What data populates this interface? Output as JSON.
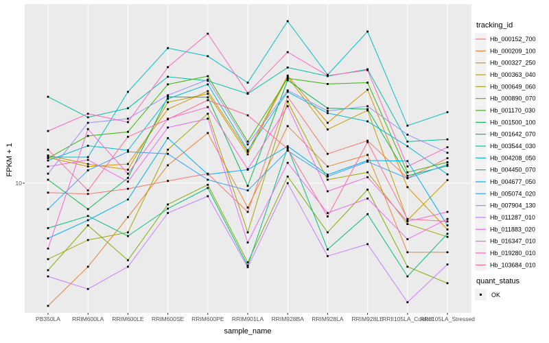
{
  "figure": {
    "background": "#FFFFFF",
    "panel_background": "#EBEBEB",
    "grid_color": "#FFFFFF",
    "point_color": "#000000",
    "axis_text_color": "#4D4D4D",
    "legend_key_background": "#F2F2F2"
  },
  "axes": {
    "x_title": "sample_name",
    "y_title": "FPKM + 1",
    "y_tick_label": "10"
  },
  "legend": {
    "color_title": "tracking_id",
    "shape_title": "quant_status",
    "shape_items": [
      {
        "label": "OK"
      }
    ]
  },
  "chart_data": {
    "type": "line",
    "title": "",
    "xlabel": "sample_name",
    "ylabel": "FPKM + 1",
    "y_scale": "log10",
    "y_ticks": [
      10
    ],
    "ylim": [
      1.9,
      100
    ],
    "grid": "major-on",
    "legend_position": "right",
    "legend_title": "tracking_id",
    "quant_status": {
      "title": "quant_status",
      "items": [
        "OK"
      ]
    },
    "x": [
      "PB350LA",
      "RRIM600LA",
      "RRIM600LE",
      "RRIM600SE",
      "RRIM600PE",
      "RRIM901LA",
      "RRIM928BA",
      "RRIM928LA",
      "RRIM928LE",
      "RRII105LA_Control",
      "RRII105LA_Stressed"
    ],
    "series": [
      {
        "id": "Hb_000152_700",
        "color": "#F8766D",
        "values": [
          8.85,
          8.7,
          9.3,
          10.3,
          11.3,
          6.9,
          30.5,
          14.6,
          17.3,
          10.7,
          13.8
        ]
      },
      {
        "id": "Hb_000209_100",
        "color": "#EA8331",
        "values": [
          2.05,
          3.4,
          6.45,
          12.6,
          19.1,
          7.3,
          20.9,
          12.4,
          14.4,
          4.1,
          4.1
        ]
      },
      {
        "id": "Hb_000327_250",
        "color": "#D89000",
        "values": [
          13.9,
          12.4,
          12.8,
          26,
          32.8,
          15,
          40.1,
          21.8,
          33.4,
          9.5,
          5.5
        ]
      },
      {
        "id": "Hb_000363_040",
        "color": "#C09B00",
        "values": [
          14.3,
          12.8,
          11.9,
          28.4,
          31.7,
          14.5,
          39.4,
          20,
          25.6,
          6.2,
          10.4
        ]
      },
      {
        "id": "Hb_000649_060",
        "color": "#A3A500",
        "values": [
          3.75,
          4.8,
          5.3,
          15.4,
          24.5,
          5.3,
          28.7,
          10.45,
          11.5,
          5.9,
          5
        ]
      },
      {
        "id": "Hb_000890_070",
        "color": "#7CAE00",
        "values": [
          3.25,
          5.8,
          3.7,
          7.6,
          9.8,
          3.6,
          10.9,
          5.3,
          9.2,
          3.4,
          2.75
        ]
      },
      {
        "id": "Hb_001170_030",
        "color": "#39B600",
        "values": [
          13.8,
          18.4,
          19.4,
          35.8,
          39.8,
          17.1,
          38.7,
          36,
          36.6,
          11.5,
          13.1
        ]
      },
      {
        "id": "Hb_001500_100",
        "color": "#00BB4E",
        "values": [
          10.45,
          7.15,
          10.7,
          30.5,
          30.3,
          9.65,
          37.8,
          26.3,
          26,
          11,
          12.5
        ]
      },
      {
        "id": "Hb_001642_070",
        "color": "#00BF7D",
        "values": [
          5.6,
          6.55,
          5.05,
          7.2,
          9.4,
          3.45,
          15.8,
          4.25,
          6.7,
          3,
          5.2
        ]
      },
      {
        "id": "Hb_003544_030",
        "color": "#00C1A3",
        "values": [
          30.5,
          23.4,
          26.3,
          39.5,
          37.5,
          31.7,
          44.5,
          39.8,
          43.5,
          17.1,
          17.6
        ]
      },
      {
        "id": "Hb_004208_050",
        "color": "#00BFC4",
        "values": [
          14,
          14,
          32.5,
          57.2,
          51.5,
          36.6,
          80.9,
          40.5,
          70.8,
          21,
          25
        ]
      },
      {
        "id": "Hb_004450_070",
        "color": "#00BBDA",
        "values": [
          13.4,
          16.2,
          15.3,
          29.7,
          35.8,
          15.3,
          32.5,
          24.7,
          22.2,
          16.1,
          11.2
        ]
      },
      {
        "id": "Hb_004677_050",
        "color": "#00B0F6",
        "values": [
          4.9,
          6.2,
          8.1,
          17.9,
          11.2,
          11.9,
          16.1,
          11.15,
          13.4,
          13.3,
          5.8
        ]
      },
      {
        "id": "Hb_005074_020",
        "color": "#35A2FF",
        "values": [
          7.15,
          11.8,
          15,
          14.6,
          10.45,
          9.1,
          15.2,
          10.9,
          13.2,
          10.65,
          12.7
        ]
      },
      {
        "id": "Hb_007904_130",
        "color": "#9590FF",
        "values": [
          11.3,
          21.8,
          23,
          31.1,
          38.1,
          16.5,
          33.1,
          25.4,
          27,
          18.7,
          14.8
        ]
      },
      {
        "id": "Hb_011287_010",
        "color": "#C77CFF",
        "values": [
          3,
          2.55,
          3.4,
          6.8,
          8.45,
          3.38,
          10,
          3.9,
          4.55,
          2.15,
          3.5
        ]
      },
      {
        "id": "Hb_011883_020",
        "color": "#E76BF3",
        "values": [
          12.4,
          13.5,
          10.2,
          20.5,
          23,
          4.65,
          13,
          6.8,
          8.2,
          4.85,
          6.3
        ]
      },
      {
        "id": "Hb_016347_010",
        "color": "#FA62DB",
        "values": [
          4.3,
          20.1,
          11.3,
          23,
          26.7,
          12,
          27,
          9,
          10.8,
          6.1,
          6.9
        ]
      },
      {
        "id": "Hb_019280_010",
        "color": "#FF62BC",
        "values": [
          19.6,
          24.5,
          22,
          44.7,
          68.9,
          32,
          54.3,
          40.1,
          43,
          12.4,
          15.9
        ]
      },
      {
        "id": "Hb_103684_010",
        "color": "#FF6A98",
        "values": [
          15.4,
          9.1,
          18.2,
          22.8,
          29.2,
          24,
          15.6,
          6.5,
          17,
          6.3,
          6.1
        ]
      }
    ]
  }
}
